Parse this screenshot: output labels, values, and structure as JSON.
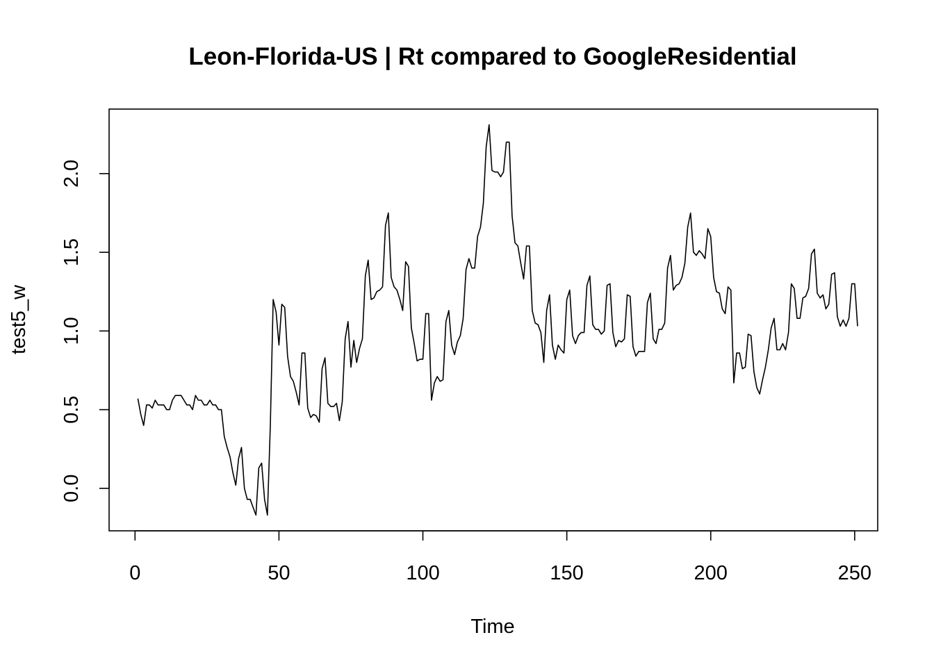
{
  "chart_data": {
    "type": "line",
    "title": "Leon-Florida-US | Rt compared to GoogleResidential",
    "xlabel": "Time",
    "ylabel": "test5_w",
    "xlim": [
      -9,
      258
    ],
    "ylim": [
      -0.27,
      2.41
    ],
    "x_ticks": [
      0,
      50,
      100,
      150,
      200,
      250
    ],
    "y_ticks": [
      0.0,
      0.5,
      1.0,
      1.5,
      2.0
    ],
    "x_tick_labels": [
      "0",
      "50",
      "100",
      "150",
      "200",
      "250"
    ],
    "y_tick_labels": [
      "0.0",
      "0.5",
      "1.0",
      "1.5",
      "2.0"
    ],
    "grid": false,
    "legend": "none",
    "line_color": "#000000",
    "series": [
      {
        "x_start": 1,
        "values": [
          0.57,
          0.47,
          0.4,
          0.53,
          0.53,
          0.51,
          0.56,
          0.53,
          0.53,
          0.53,
          0.5,
          0.5,
          0.56,
          0.59,
          0.59,
          0.59,
          0.56,
          0.53,
          0.53,
          0.5,
          0.59,
          0.56,
          0.56,
          0.53,
          0.53,
          0.56,
          0.53,
          0.53,
          0.5,
          0.5,
          0.33,
          0.26,
          0.2,
          0.1,
          0.02,
          0.19,
          0.26,
          0.0,
          -0.07,
          -0.07,
          -0.12,
          -0.17,
          0.13,
          0.16,
          -0.07,
          -0.17,
          0.4,
          1.2,
          1.12,
          0.91,
          1.17,
          1.15,
          0.84,
          0.71,
          0.68,
          0.61,
          0.53,
          0.86,
          0.86,
          0.51,
          0.45,
          0.47,
          0.46,
          0.42,
          0.76,
          0.83,
          0.54,
          0.52,
          0.52,
          0.54,
          0.43,
          0.55,
          0.95,
          1.06,
          0.77,
          0.94,
          0.8,
          0.89,
          0.95,
          1.35,
          1.45,
          1.2,
          1.21,
          1.25,
          1.26,
          1.28,
          1.67,
          1.75,
          1.34,
          1.28,
          1.26,
          1.2,
          1.13,
          1.44,
          1.41,
          1.02,
          0.92,
          0.81,
          0.82,
          0.82,
          1.11,
          1.11,
          0.56,
          0.67,
          0.71,
          0.68,
          0.69,
          1.06,
          1.13,
          0.91,
          0.85,
          0.93,
          0.97,
          1.08,
          1.39,
          1.46,
          1.4,
          1.4,
          1.6,
          1.66,
          1.81,
          2.17,
          2.31,
          2.02,
          2.01,
          2.01,
          1.98,
          2.01,
          2.2,
          2.2,
          1.73,
          1.56,
          1.54,
          1.43,
          1.33,
          1.54,
          1.54,
          1.13,
          1.05,
          1.04,
          0.99,
          0.8,
          1.13,
          1.23,
          0.91,
          0.82,
          0.91,
          0.88,
          0.86,
          1.2,
          1.26,
          0.97,
          0.92,
          0.97,
          0.99,
          0.99,
          1.29,
          1.35,
          1.04,
          1.01,
          1.01,
          0.98,
          1.0,
          1.29,
          1.3,
          0.99,
          0.9,
          0.94,
          0.93,
          0.95,
          1.23,
          1.22,
          0.9,
          0.84,
          0.87,
          0.87,
          0.87,
          1.18,
          1.24,
          0.95,
          0.92,
          1.01,
          1.01,
          1.05,
          1.4,
          1.48,
          1.26,
          1.29,
          1.3,
          1.34,
          1.43,
          1.66,
          1.75,
          1.5,
          1.48,
          1.51,
          1.49,
          1.46,
          1.65,
          1.6,
          1.34,
          1.25,
          1.24,
          1.14,
          1.11,
          1.28,
          1.26,
          0.67,
          0.86,
          0.86,
          0.76,
          0.77,
          0.98,
          0.97,
          0.74,
          0.64,
          0.6,
          0.69,
          0.77,
          0.88,
          1.02,
          1.08,
          0.88,
          0.88,
          0.92,
          0.88,
          0.99,
          1.3,
          1.27,
          1.08,
          1.08,
          1.21,
          1.22,
          1.27,
          1.49,
          1.52,
          1.24,
          1.21,
          1.23,
          1.14,
          1.17,
          1.36,
          1.37,
          1.09,
          1.03,
          1.07,
          1.03,
          1.08,
          1.3,
          1.3,
          1.03
        ]
      }
    ]
  }
}
